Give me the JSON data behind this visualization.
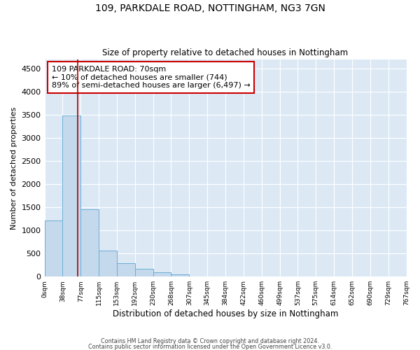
{
  "title1": "109, PARKDALE ROAD, NOTTINGHAM, NG3 7GN",
  "title2": "Size of property relative to detached houses in Nottingham",
  "xlabel": "Distribution of detached houses by size in Nottingham",
  "ylabel": "Number of detached properties",
  "bin_labels": [
    "0sqm",
    "38sqm",
    "77sqm",
    "115sqm",
    "153sqm",
    "192sqm",
    "230sqm",
    "268sqm",
    "307sqm",
    "345sqm",
    "384sqm",
    "422sqm",
    "460sqm",
    "499sqm",
    "537sqm",
    "575sqm",
    "614sqm",
    "652sqm",
    "690sqm",
    "729sqm",
    "767sqm"
  ],
  "bar_heights": [
    1220,
    3480,
    1450,
    560,
    290,
    175,
    100,
    50,
    10,
    10,
    0,
    10,
    0,
    0,
    0,
    0,
    0,
    0,
    0,
    0
  ],
  "bar_color": "#c5d9ed",
  "bar_edge_color": "#6aaed6",
  "vline_x": 1.85,
  "annotation_text": "109 PARKDALE ROAD: 70sqm\n← 10% of detached houses are smaller (744)\n89% of semi-detached houses are larger (6,497) →",
  "annotation_box_color": "#ffffff",
  "annotation_box_edge_color": "#cc0000",
  "vline_color": "#aa0000",
  "plot_bg_color": "#dce9f5",
  "ylim": [
    0,
    4700
  ],
  "yticks": [
    0,
    500,
    1000,
    1500,
    2000,
    2500,
    3000,
    3500,
    4000,
    4500
  ],
  "footer1": "Contains HM Land Registry data © Crown copyright and database right 2024.",
  "footer2": "Contains public sector information licensed under the Open Government Licence v3.0."
}
